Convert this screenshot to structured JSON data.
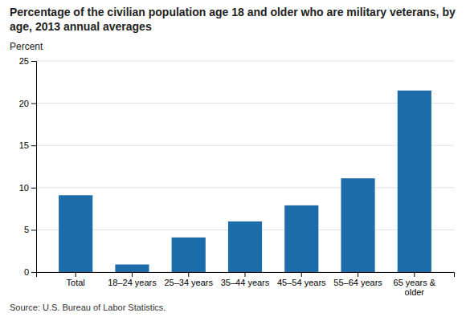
{
  "chart_data": {
    "type": "bar",
    "title": "Percentage of the civilian population age 18 and older who are military veterans, by age, 2013 annual averages",
    "ylabel": "Percent",
    "source": "Source: U.S. Bureau of Labor Statistics.",
    "categories": [
      "Total",
      "18–24 years",
      "25–34 years",
      "35–44 years",
      "45–54 years",
      "55–64 years",
      "65 years &\nolder"
    ],
    "values": [
      9.1,
      0.9,
      4.1,
      6.0,
      7.9,
      11.1,
      21.5
    ],
    "color": "#1b6ca8",
    "ylim": [
      0,
      25
    ],
    "yticks": [
      0,
      5,
      10,
      15,
      20,
      25
    ],
    "grid": true
  }
}
